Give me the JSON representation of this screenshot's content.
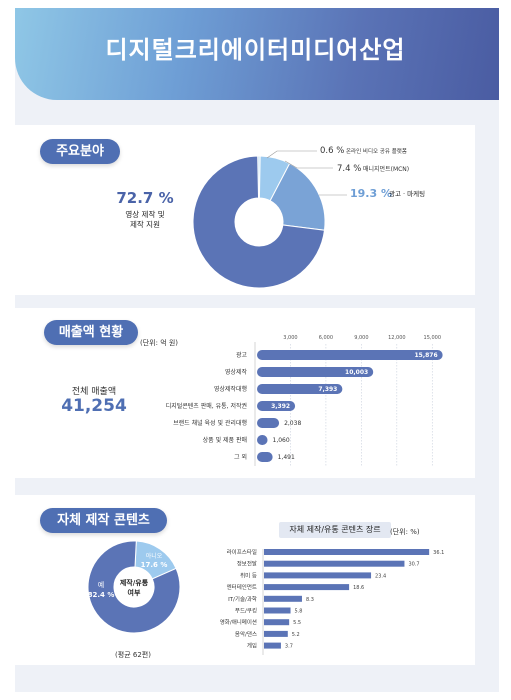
{
  "banner": {
    "title": "디지털크리에이터미디어산업"
  },
  "sections": {
    "main_fields": {
      "label": "주요분야"
    },
    "revenue": {
      "label": "매출액 현황",
      "unit": "(단위: 억 원)",
      "total_label": "전체 매출액",
      "total_value": "41,254"
    },
    "own_content": {
      "label": "자체 제작 콘텐츠",
      "genre_title": "자체 제작/유통 콘텐츠 장르",
      "genre_unit": "(단위: %)",
      "donut_center": "제작/유통\n여부",
      "avg_note": "(평균 62편)"
    }
  },
  "colors": {
    "primary": "#5b74b6",
    "mid": "#7aa3d6",
    "light": "#9dcaee",
    "pale": "#c8e4f5"
  },
  "chart_data": [
    {
      "type": "pie",
      "title": "주요분야",
      "slices": [
        {
          "label": "영상 제작 및 제작 지원",
          "value": 72.7,
          "value_text": "72.7 %",
          "color": "#5b74b6"
        },
        {
          "label": "광고 · 마케팅",
          "value": 19.3,
          "value_text": "19.3 %",
          "color": "#7aa3d6"
        },
        {
          "label": "매니지먼트(MCN)",
          "value": 7.4,
          "value_text": "7.4 %",
          "color": "#9dcaee"
        },
        {
          "label": "온라인 비디오 공유 플랫폼",
          "value": 0.6,
          "value_text": "0.6 %",
          "color": "#c8e4f5"
        }
      ]
    },
    {
      "type": "bar",
      "title": "매출액 현황",
      "unit": "(단위: 억 원)",
      "axis_ticks": [
        "3,000",
        "6,000",
        "9,000",
        "12,000",
        "15,000"
      ],
      "xlim": [
        0,
        16500
      ],
      "categories": [
        "광고",
        "영상제작",
        "영상제작대행",
        "디지털콘텐츠 판매, 유통, 저작권",
        "브랜드 채널 육성 및 관리대행",
        "상품 및 제품 판매",
        "그 외"
      ],
      "values": [
        15876,
        10003,
        7393,
        3392,
        2038,
        1060,
        1491
      ],
      "value_labels": [
        "15,876",
        "10,003",
        "7,393",
        "3,392",
        "2,038",
        "1,060",
        "1,491"
      ]
    },
    {
      "type": "pie",
      "title": "자체 제작 콘텐츠",
      "slices": [
        {
          "label": "예",
          "value": 82.4,
          "value_text": "82.4 %",
          "color": "#5b74b6"
        },
        {
          "label": "아니오",
          "value": 17.6,
          "value_text": "17.6 %",
          "color": "#9dcaee"
        }
      ]
    },
    {
      "type": "bar",
      "title": "자체 제작/유통 콘텐츠 장르",
      "unit": "(단위: %)",
      "xlim": [
        0,
        40
      ],
      "categories": [
        "라이프스타일",
        "정보전달",
        "취미 등",
        "엔터테인먼트",
        "IT/기술/과학",
        "푸드/쿠킹",
        "영화/애니메이션",
        "음악/댄스",
        "게임"
      ],
      "values": [
        36.1,
        30.7,
        23.4,
        18.6,
        8.3,
        5.8,
        5.5,
        5.2,
        3.7
      ],
      "value_labels": [
        "36.1",
        "30.7",
        "23.4",
        "18.6",
        "8.3",
        "5.8",
        "5.5",
        "5.2",
        "3.7"
      ]
    }
  ]
}
